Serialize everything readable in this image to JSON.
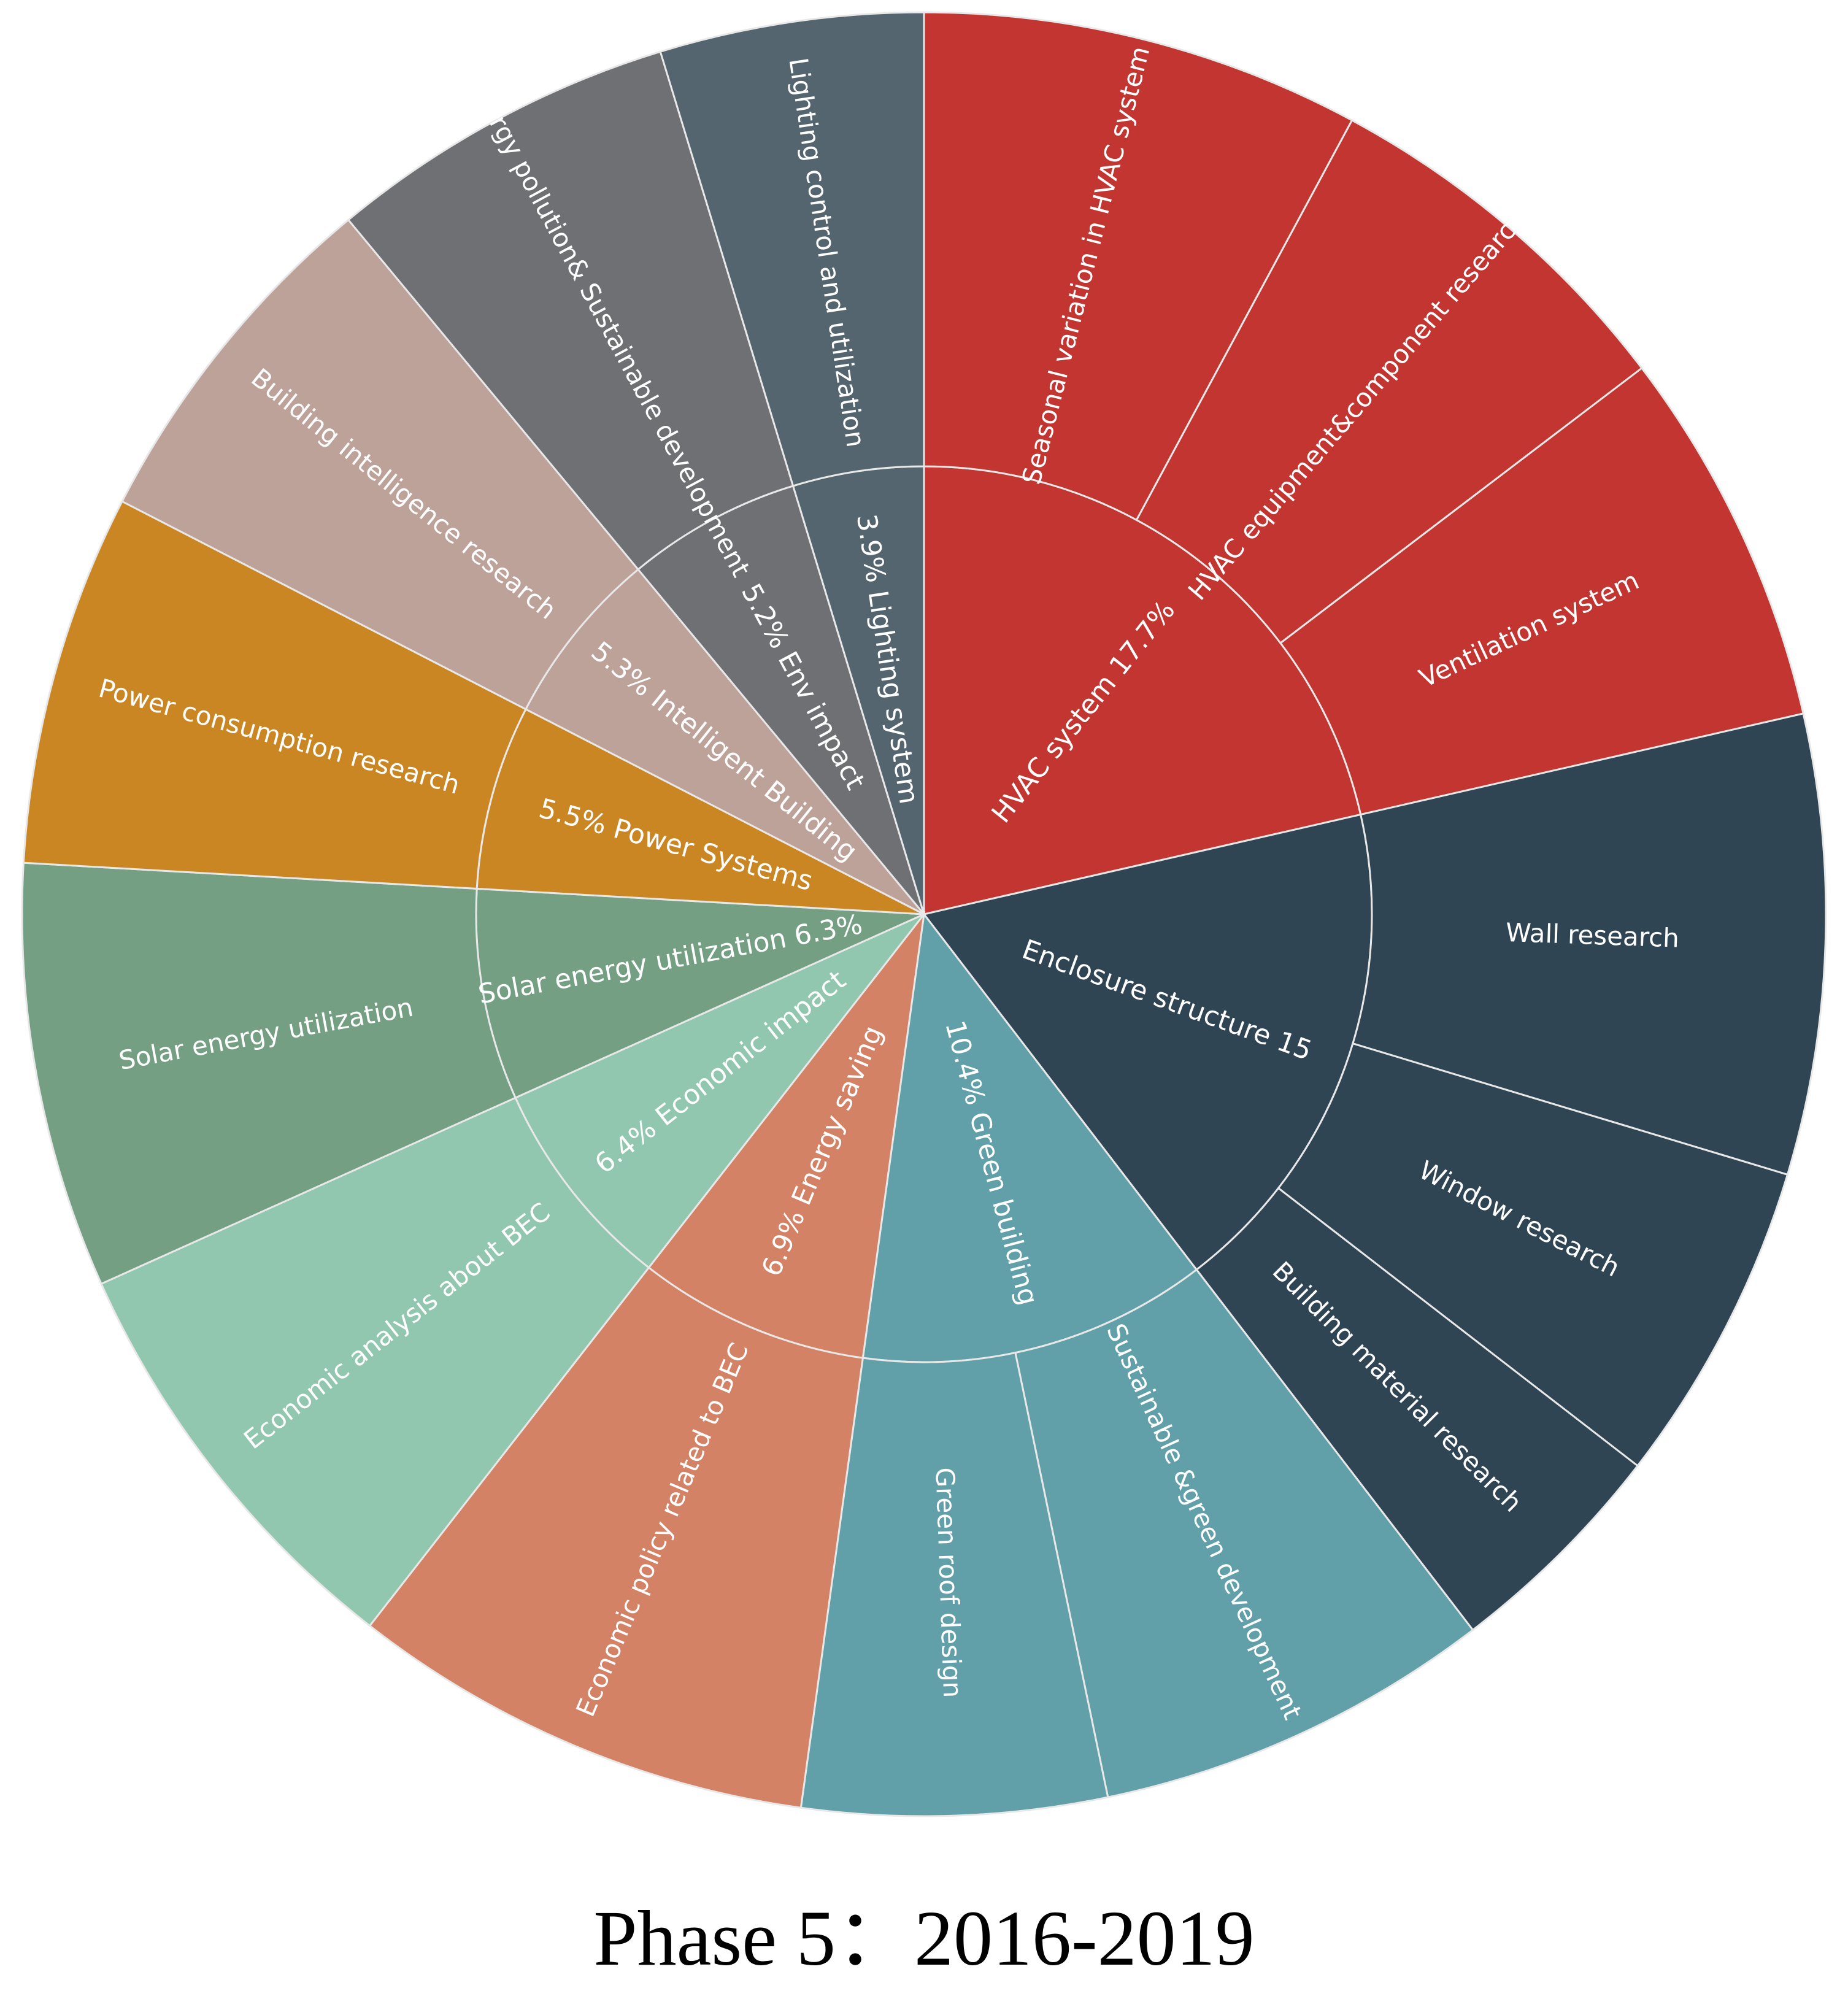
{
  "caption": "Phase 5：2016-2019",
  "chart_data": {
    "type": "sunburst",
    "title": "",
    "unit": "%",
    "categories": [
      {
        "label": "HVAC system 17.7%",
        "value": 17.7,
        "color": "#c23531",
        "children": [
          {
            "label": "Seasonal variation in HVAC system",
            "value": 6.5
          },
          {
            "label": "HVAC equipment&component research",
            "value": 5.6
          },
          {
            "label": "Ventilation system",
            "value": 5.6
          }
        ]
      },
      {
        "label": "Enclosure structure 15",
        "value": 15,
        "color": "#2f4554",
        "children": [
          {
            "label": "Wall research",
            "value": 6.8
          },
          {
            "label": "Window research",
            "value": 4.8
          },
          {
            "label": "Building material research",
            "value": 3.4
          }
        ]
      },
      {
        "label": "10.4% Green building",
        "value": 10.4,
        "color": "#61a0a8",
        "children": [
          {
            "label": "Sustainable &green development",
            "value": 5.9
          },
          {
            "label": "Green roof design",
            "value": 4.5
          }
        ]
      },
      {
        "label": "6.9% Energy saving",
        "value": 6.9,
        "color": "#d48265",
        "children": [
          {
            "label": "Economic policy related to BEC",
            "value": 6.9
          }
        ]
      },
      {
        "label": "6.4% Economic impact",
        "value": 6.4,
        "color": "#91c7ae",
        "children": [
          {
            "label": "Economic analysis about BEC",
            "value": 6.4
          }
        ]
      },
      {
        "label": "Solar energy utilization 6.3%",
        "value": 6.3,
        "color": "#749f83",
        "children": [
          {
            "label": "Solar energy utilization",
            "value": 6.3
          }
        ]
      },
      {
        "label": "5.5% Power Systems",
        "value": 5.5,
        "color": "#ca8622",
        "children": [
          {
            "label": "Power consumption research",
            "value": 5.5
          }
        ]
      },
      {
        "label": "5.3% Intelligent Building",
        "value": 5.3,
        "color": "#bda29a",
        "children": [
          {
            "label": "Building intelligence research",
            "value": 5.3
          }
        ]
      },
      {
        "label": "5.2% Env impact",
        "value": 5.2,
        "color": "#6e7074",
        "children": [
          {
            "label": "Energy pollution& Sustainable development",
            "value": 5.2
          }
        ]
      },
      {
        "label": "3.9% Lighting system",
        "value": 3.9,
        "color": "#546570",
        "children": [
          {
            "label": "Lighting control and utilization",
            "value": 3.9
          }
        ]
      }
    ]
  }
}
